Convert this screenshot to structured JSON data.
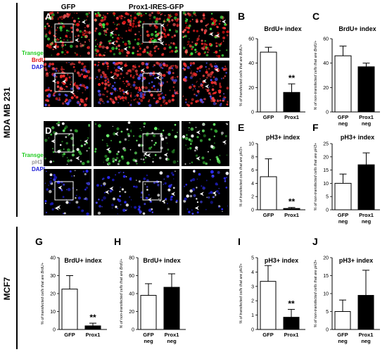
{
  "figure": {
    "cell_lines": [
      {
        "name": "MDA MB 231"
      },
      {
        "name": "MCF7"
      }
    ],
    "micrograph_columns": {
      "gfp": "GFP",
      "prox1": "Prox1-IRES-GFP"
    },
    "stain_legend_top": [
      {
        "text": "Transgene",
        "color": "#22cc22"
      },
      {
        "text": "BrdU",
        "color": "#e01010"
      },
      {
        "text": "DAPI",
        "color": "#1a1ad6"
      }
    ],
    "stain_legend_bottom": [
      {
        "text": "Transgene",
        "color": "#22cc22"
      },
      {
        "text": "pH3",
        "color": "#9a9a9a"
      },
      {
        "text": "DAPI",
        "color": "#1a1ad6"
      }
    ],
    "panel_letters": {
      "A": "A",
      "D": "D"
    }
  },
  "chart_data": [
    {
      "panel": "B",
      "type": "bar",
      "title": "BrdU+ index",
      "ylabel": "% of transfected cells that are BrdU+",
      "categories": [
        "GFP",
        "Prox1"
      ],
      "cat_sub": [
        "",
        ""
      ],
      "values": [
        49,
        16
      ],
      "errors": [
        4,
        7
      ],
      "fills": [
        "#ffffff",
        "#000000"
      ],
      "ylim": [
        0,
        60
      ],
      "yticks": [
        0,
        20,
        40,
        60
      ],
      "sig": "**"
    },
    {
      "panel": "C",
      "type": "bar",
      "title": "BrdU+ index",
      "ylabel": "% of non-transfected cells that are BrdU+",
      "categories": [
        "GFP",
        "Prox1"
      ],
      "cat_sub": [
        "neg",
        "neg"
      ],
      "values": [
        46,
        37
      ],
      "errors": [
        8,
        3
      ],
      "fills": [
        "#ffffff",
        "#000000"
      ],
      "ylim": [
        0,
        60
      ],
      "yticks": [
        0,
        20,
        40,
        60
      ],
      "sig": ""
    },
    {
      "panel": "E",
      "type": "bar",
      "title": "pH3+ index",
      "ylabel": "% of transfected cells that are pH3+",
      "categories": [
        "GFP",
        "Prox1"
      ],
      "cat_sub": [
        "",
        ""
      ],
      "values": [
        5.0,
        0.2
      ],
      "errors": [
        2.7,
        0.15
      ],
      "fills": [
        "#ffffff",
        "#000000"
      ],
      "ylim": [
        0,
        10
      ],
      "yticks": [
        0,
        2,
        4,
        6,
        8,
        10
      ],
      "sig": "**"
    },
    {
      "panel": "F",
      "type": "bar",
      "title": "pH3+ index",
      "ylabel": "% of non-transfected cells that are pH3+",
      "categories": [
        "GFP",
        "Prox1"
      ],
      "cat_sub": [
        "neg",
        "neg"
      ],
      "values": [
        10,
        17
      ],
      "errors": [
        3.5,
        4.5
      ],
      "fills": [
        "#ffffff",
        "#000000"
      ],
      "ylim": [
        0,
        25
      ],
      "yticks": [
        0,
        5,
        10,
        15,
        20,
        25
      ],
      "sig": ""
    },
    {
      "panel": "G",
      "type": "bar",
      "title": "BrdU+ index",
      "ylabel": "% of transfected cells that are BrdU+",
      "categories": [
        "GFP",
        "Prox1"
      ],
      "cat_sub": [
        "",
        ""
      ],
      "values": [
        22.5,
        2
      ],
      "errors": [
        7.5,
        1.5
      ],
      "fills": [
        "#ffffff",
        "#000000"
      ],
      "ylim": [
        0,
        40
      ],
      "yticks": [
        0,
        10,
        20,
        30,
        40
      ],
      "sig": "**"
    },
    {
      "panel": "H",
      "type": "bar",
      "title": "BrdU+ index",
      "ylabel": "% of non-transfected cells that are BrdU+",
      "categories": [
        "GFP",
        "Prox1"
      ],
      "cat_sub": [
        "neg",
        "neg"
      ],
      "values": [
        38,
        47
      ],
      "errors": [
        13,
        15
      ],
      "fills": [
        "#ffffff",
        "#000000"
      ],
      "ylim": [
        0,
        80
      ],
      "yticks": [
        0,
        20,
        40,
        60,
        80
      ],
      "sig": ""
    },
    {
      "panel": "I",
      "type": "bar",
      "title": "pH3+ index",
      "ylabel": "% of transfected cells that are pH3+",
      "categories": [
        "GFP",
        "Prox1"
      ],
      "cat_sub": [
        "",
        ""
      ],
      "values": [
        3.35,
        0.85
      ],
      "errors": [
        1.1,
        0.55
      ],
      "fills": [
        "#ffffff",
        "#000000"
      ],
      "ylim": [
        0,
        5
      ],
      "yticks": [
        0,
        1,
        2,
        3,
        4,
        5
      ],
      "sig": "**"
    },
    {
      "panel": "J",
      "type": "bar",
      "title": "pH3+ index",
      "ylabel": "% of non-transfected cells that are pH3+",
      "categories": [
        "GFP",
        "Prox1"
      ],
      "cat_sub": [
        "neg",
        "neg"
      ],
      "values": [
        5,
        9.5
      ],
      "errors": [
        3.2,
        7
      ],
      "fills": [
        "#ffffff",
        "#000000"
      ],
      "ylim": [
        0,
        20
      ],
      "yticks": [
        0,
        5,
        10,
        15,
        20
      ],
      "sig": ""
    }
  ]
}
